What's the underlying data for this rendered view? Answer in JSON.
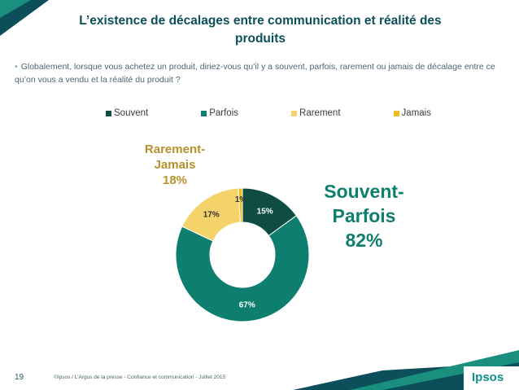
{
  "page": {
    "title": "L’existence de décalages entre communication et réalité des produits",
    "question": "Globalement, lorsque vous achetez un produit, diriez-vous qu’il y a souvent, parfois, rarement ou jamais de décalage entre ce qu’on vous a vendu et la réalité du produit ?",
    "page_number": "19",
    "footer": "©Ipsos / L’Argus de la presse - Confiance et communication - Juillet 2015",
    "logo": "Ipsos"
  },
  "colors": {
    "souvent": "#0f4d43",
    "parfois": "#0e7f6e",
    "rarement": "#f4d36b",
    "jamais": "#f2bd1c",
    "title": "#0c4f5a",
    "accent": "#0c8f8a"
  },
  "chart_data": {
    "type": "pie",
    "style": "donut",
    "categories": [
      "Souvent",
      "Parfois",
      "Rarement",
      "Jamais"
    ],
    "values": [
      15,
      67,
      17,
      1
    ],
    "value_labels": [
      "15%",
      "67%",
      "17%",
      "1%"
    ],
    "legend_position": "top",
    "groups": [
      {
        "name": "Souvent-\nParfois",
        "value_label": "82%",
        "line1": "Souvent-",
        "line2": "Parfois"
      },
      {
        "name": "Rarement-\nJamais",
        "value_label": "18%",
        "line1": "Rarement-",
        "line2": "Jamais"
      }
    ]
  }
}
